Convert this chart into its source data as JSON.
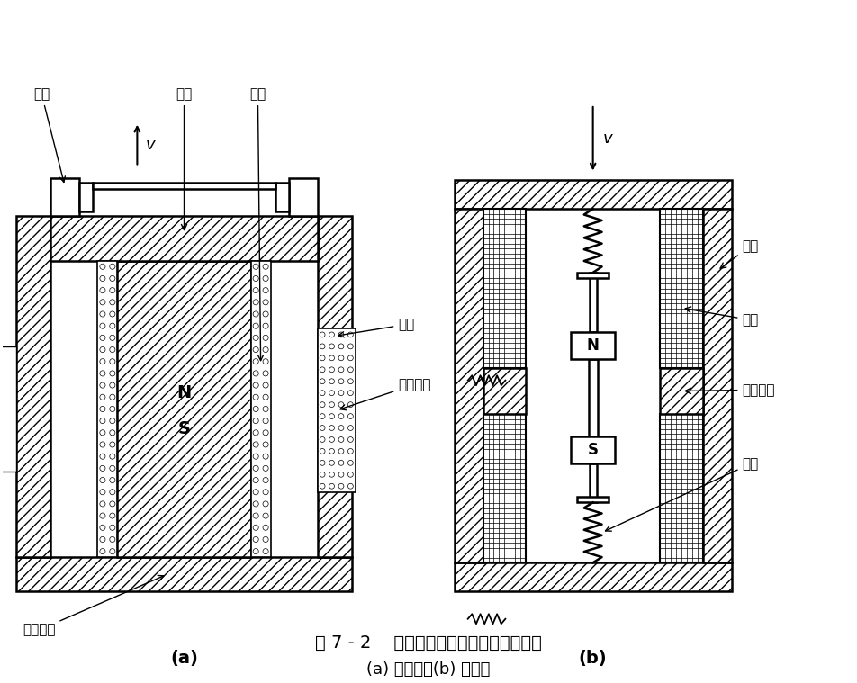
{
  "title_main": "图 7 - 2    恒磁通式磁电传感器结构原理图",
  "title_sub": "(a) 动圈式；(b) 动铁式",
  "label_a": "(a)",
  "label_b": "(b)",
  "bg_color": "#ffffff",
  "line_color": "#000000"
}
